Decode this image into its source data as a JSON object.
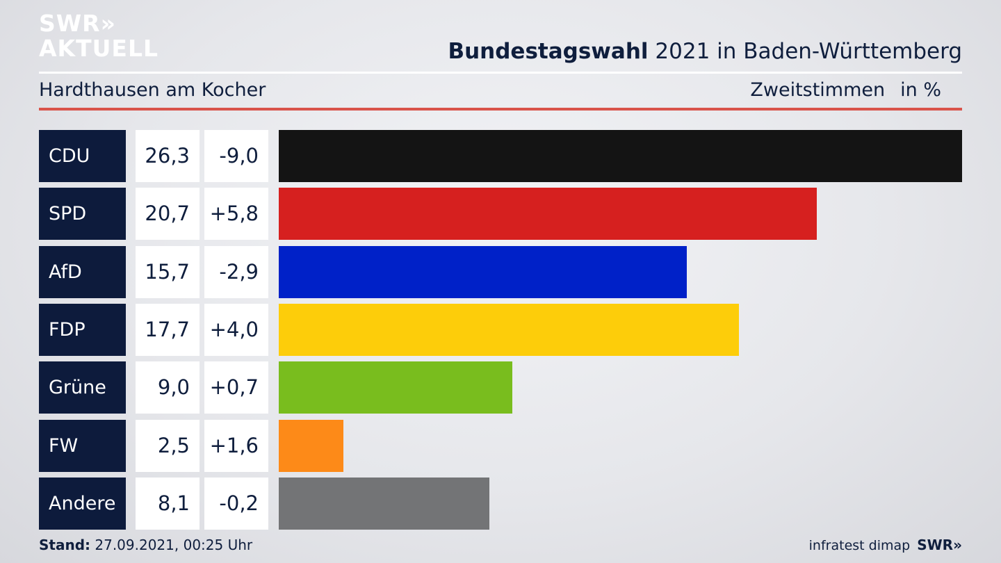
{
  "logo": {
    "line1": "SWR»",
    "line2": "AKTUELL"
  },
  "header": {
    "title_bold": "Bundestagswahl",
    "title_rest": " 2021 in Baden-Württemberg",
    "location": "Hardthausen am Kocher",
    "measure": "Zweitstimmen",
    "unit": "in %"
  },
  "chart_data": {
    "type": "bar",
    "orientation": "horizontal",
    "categories": [
      "CDU",
      "SPD",
      "AfD",
      "FDP",
      "Grüne",
      "FW",
      "Andere"
    ],
    "series": [
      {
        "values": [
          26.3,
          20.7,
          15.7,
          17.7,
          9.0,
          2.5,
          8.1
        ]
      }
    ],
    "value_labels": [
      "26,3",
      "20,7",
      "15,7",
      "17,7",
      "9,0",
      "2,5",
      "8,1"
    ],
    "diff_labels": [
      "-9,0",
      "+5,8",
      "-2,9",
      "+4,0",
      "+0,7",
      "+1,6",
      "-0,2"
    ],
    "colors": [
      "#141414",
      "#d6201f",
      "#0021c8",
      "#fdcd0a",
      "#79bd1e",
      "#fd8a18",
      "#737476"
    ],
    "xlim": [
      0,
      26.3
    ],
    "grid": false
  },
  "footer": {
    "stand_label": "Stand:",
    "stand_value": " 27.09.2021, 00:25 Uhr",
    "source": "infratest dimap",
    "brand": "SWR»"
  }
}
